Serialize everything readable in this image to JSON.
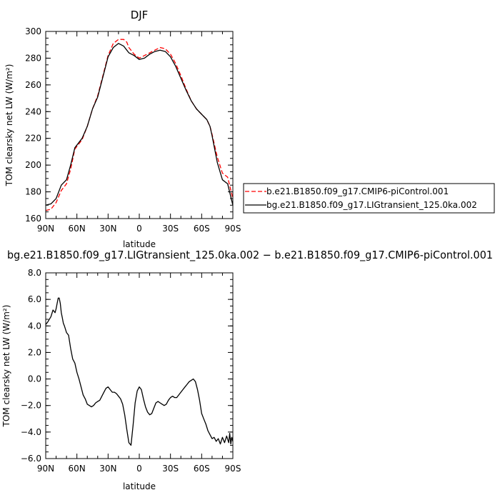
{
  "chart_data": [
    {
      "type": "line",
      "title": "DJF",
      "xlabel": "latitude",
      "ylabel": "TOM clearsky net LW (W/m²)",
      "xlim": [
        90,
        -90
      ],
      "ylim": [
        160,
        300
      ],
      "x_ticks": [
        {
          "value": 90,
          "label": "90N"
        },
        {
          "value": 60,
          "label": "60N"
        },
        {
          "value": 30,
          "label": "30N"
        },
        {
          "value": 0,
          "label": "0"
        },
        {
          "value": -30,
          "label": "30S"
        },
        {
          "value": -60,
          "label": "60S"
        },
        {
          "value": -90,
          "label": "90S"
        }
      ],
      "y_ticks": [
        {
          "value": 160,
          "label": "160"
        },
        {
          "value": 180,
          "label": "180"
        },
        {
          "value": 200,
          "label": "200"
        },
        {
          "value": 220,
          "label": "220"
        },
        {
          "value": 240,
          "label": "240"
        },
        {
          "value": 260,
          "label": "260"
        },
        {
          "value": 280,
          "label": "280"
        },
        {
          "value": 300,
          "label": "300"
        }
      ],
      "legend": "outside-right",
      "series": [
        {
          "name": "b.e21.B1850.f09_g17.CMIP6-piControl.001",
          "color": "#ff0000",
          "style": "dashed",
          "x": [
            90,
            85,
            80,
            75,
            70,
            66,
            62,
            58,
            55,
            50,
            45,
            40,
            35,
            30,
            25,
            20,
            15,
            12,
            10,
            5,
            0,
            -5,
            -10,
            -15,
            -20,
            -25,
            -30,
            -35,
            -40,
            -45,
            -50,
            -55,
            -60,
            -65,
            -68,
            -70,
            -75,
            -80,
            -85,
            -90
          ],
          "values": [
            166,
            167,
            172,
            181,
            186,
            197,
            212,
            216,
            219,
            229,
            242,
            252,
            267,
            282,
            291,
            294,
            294,
            292,
            288,
            283,
            280,
            282,
            284,
            286,
            288,
            287,
            283,
            276,
            267,
            257,
            248,
            242,
            238,
            234,
            229,
            223,
            206,
            194,
            191,
            175
          ]
        },
        {
          "name": "bg.e21.B1850.f09_g17.LIGtransient_125.0ka.002",
          "color": "#000000",
          "style": "solid",
          "x": [
            90,
            85,
            80,
            75,
            70,
            66,
            62,
            58,
            55,
            50,
            45,
            40,
            35,
            30,
            25,
            20,
            15,
            12,
            10,
            5,
            0,
            -5,
            -10,
            -15,
            -20,
            -25,
            -30,
            -35,
            -40,
            -45,
            -50,
            -55,
            -60,
            -65,
            -68,
            -70,
            -75,
            -80,
            -85,
            -90
          ],
          "values": [
            170,
            171,
            175,
            185,
            189,
            200,
            213,
            217,
            220,
            229,
            242,
            251,
            266,
            281,
            288,
            291,
            289,
            286,
            284,
            282,
            279,
            280,
            283,
            285,
            286,
            285,
            281,
            274,
            265,
            256,
            248,
            242,
            238,
            234,
            229,
            222,
            202,
            189,
            186,
            170
          ]
        }
      ]
    },
    {
      "type": "line",
      "title": "bg.e21.B1850.f09_g17.LIGtransient_125.0ka.002 − b.e21.B1850.f09_g17.CMIP6-piControl.001",
      "xlabel": "latitude",
      "ylabel": "TOM clearsky net LW (W/m²)",
      "xlim": [
        90,
        -90
      ],
      "ylim": [
        -6,
        8
      ],
      "x_ticks": [
        {
          "value": 90,
          "label": "90N"
        },
        {
          "value": 60,
          "label": "60N"
        },
        {
          "value": 30,
          "label": "30N"
        },
        {
          "value": 0,
          "label": "0"
        },
        {
          "value": -30,
          "label": "30S"
        },
        {
          "value": -60,
          "label": "60S"
        },
        {
          "value": -90,
          "label": "90S"
        }
      ],
      "y_ticks": [
        {
          "value": -6,
          "label": "−6.0"
        },
        {
          "value": -4,
          "label": "−4.0"
        },
        {
          "value": -2,
          "label": "−2.0"
        },
        {
          "value": 0,
          "label": "0.0"
        },
        {
          "value": 2,
          "label": "2.0"
        },
        {
          "value": 4,
          "label": "4.0"
        },
        {
          "value": 6,
          "label": "6.0"
        },
        {
          "value": 8,
          "label": "8.0"
        }
      ],
      "series": [
        {
          "name": "",
          "color": "#000000",
          "style": "solid",
          "x": [
            90,
            88,
            85,
            83,
            81,
            80,
            79,
            78,
            77,
            76,
            75,
            74,
            73,
            72,
            70,
            68,
            66,
            64,
            62,
            60,
            58,
            56,
            54,
            52,
            50,
            48,
            46,
            44,
            42,
            40,
            38,
            36,
            34,
            32,
            30,
            28,
            26,
            24,
            22,
            20,
            18,
            16,
            14,
            12,
            10,
            8,
            6,
            4,
            2,
            0,
            -2,
            -4,
            -6,
            -8,
            -10,
            -12,
            -14,
            -16,
            -18,
            -20,
            -22,
            -24,
            -26,
            -28,
            -30,
            -32,
            -34,
            -36,
            -38,
            -40,
            -42,
            -44,
            -46,
            -48,
            -50,
            -52,
            -54,
            -56,
            -58,
            -60,
            -62,
            -64,
            -66,
            -68,
            -70,
            -72,
            -74,
            -76,
            -78,
            -80,
            -82,
            -84,
            -86,
            -87,
            -88,
            -89,
            -90
          ],
          "values": [
            4.1,
            4.3,
            4.7,
            5.2,
            5.0,
            5.3,
            5.7,
            6.1,
            6.1,
            5.7,
            5.0,
            4.6,
            4.2,
            4.0,
            3.5,
            3.3,
            2.3,
            1.5,
            1.2,
            0.5,
            0.0,
            -0.6,
            -1.2,
            -1.5,
            -1.9,
            -2.0,
            -2.1,
            -2.0,
            -1.8,
            -1.7,
            -1.6,
            -1.3,
            -1.0,
            -0.7,
            -0.6,
            -0.8,
            -1.0,
            -1.0,
            -1.1,
            -1.3,
            -1.5,
            -1.9,
            -2.7,
            -3.8,
            -4.8,
            -5.0,
            -3.5,
            -1.8,
            -0.9,
            -0.6,
            -0.8,
            -1.5,
            -2.1,
            -2.5,
            -2.7,
            -2.6,
            -2.2,
            -1.8,
            -1.7,
            -1.8,
            -1.9,
            -2.0,
            -1.9,
            -1.6,
            -1.4,
            -1.3,
            -1.4,
            -1.4,
            -1.2,
            -1.0,
            -0.8,
            -0.6,
            -0.4,
            -0.2,
            -0.1,
            0.0,
            -0.2,
            -0.8,
            -1.6,
            -2.6,
            -3.0,
            -3.4,
            -3.9,
            -4.2,
            -4.5,
            -4.4,
            -4.7,
            -4.5,
            -4.9,
            -4.4,
            -4.8,
            -4.3,
            -4.8,
            -4.1,
            -4.9,
            -4.4,
            -4.7
          ]
        }
      ]
    }
  ]
}
